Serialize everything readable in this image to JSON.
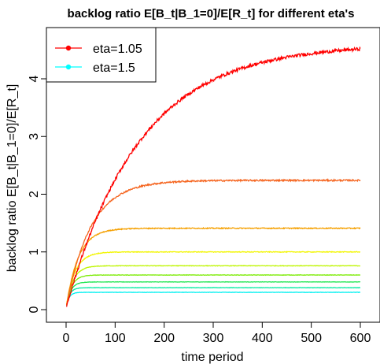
{
  "chart_data": {
    "type": "line",
    "title": "backlog ratio E[B_t|B_1=0]/E[R_t] for different eta's",
    "xlabel": "time period",
    "ylabel": "backlog ratio E[B_t|B_1=0]/E[R_t]",
    "xlim": [
      0,
      600
    ],
    "ylim": [
      0,
      4.6
    ],
    "x_ticks": [
      "0",
      "100",
      "200",
      "300",
      "400",
      "500",
      "600"
    ],
    "y_ticks": [
      "0",
      "1",
      "2",
      "3",
      "4"
    ],
    "grid": false,
    "legend_position": "top-left",
    "legend": [
      {
        "label": "eta=1.05",
        "color": "#ff0000"
      },
      {
        "label": "eta=1.5",
        "color": "#00ffff"
      }
    ],
    "series": [
      {
        "color": "#ff0000",
        "start": 0.03,
        "plateau": 4.6,
        "tau": 150
      },
      {
        "color": "#f5641e",
        "start": 0.03,
        "plateau": 2.24,
        "tau": 50
      },
      {
        "color": "#f5a000",
        "start": 0.03,
        "plateau": 1.41,
        "tau": 25
      },
      {
        "color": "#f2f500",
        "start": 0.03,
        "plateau": 1.0,
        "tau": 18
      },
      {
        "color": "#bef500",
        "start": 0.03,
        "plateau": 0.76,
        "tau": 14
      },
      {
        "color": "#7aeb00",
        "start": 0.03,
        "plateau": 0.6,
        "tau": 11
      },
      {
        "color": "#1ee650",
        "start": 0.03,
        "plateau": 0.48,
        "tau": 9
      },
      {
        "color": "#00eba0",
        "start": 0.03,
        "plateau": 0.38,
        "tau": 7
      },
      {
        "color": "#00f0f0",
        "start": 0.03,
        "plateau": 0.3,
        "tau": 6
      }
    ]
  }
}
